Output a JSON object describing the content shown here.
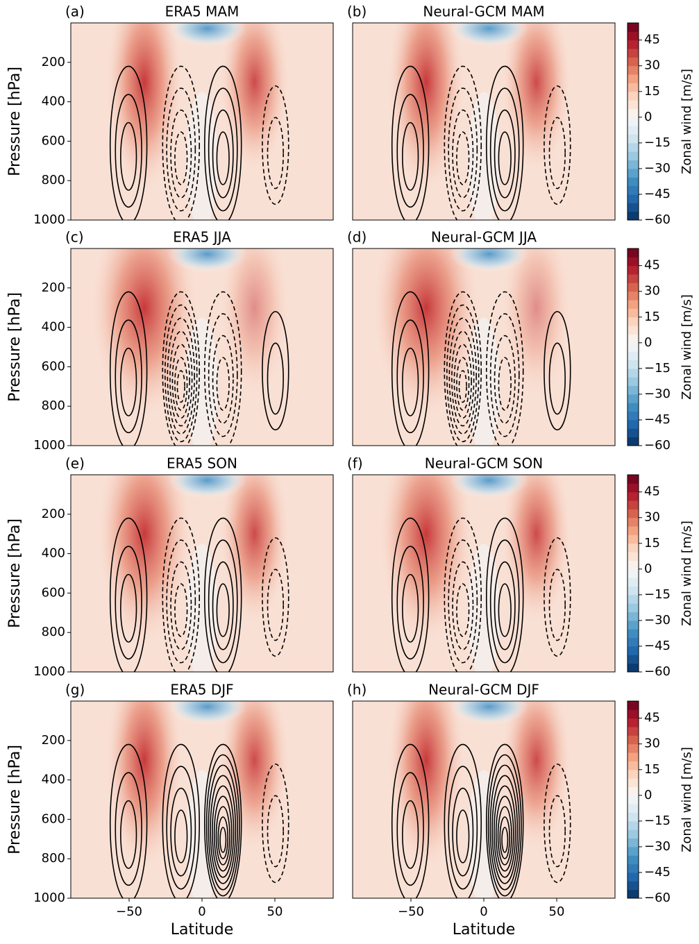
{
  "chart_data": [
    {
      "type": "contour",
      "panel": "(a)",
      "title": "ERA5 MAM",
      "xlim": [
        -90,
        90
      ],
      "ylim": [
        1000,
        0
      ],
      "ylabel": "Pressure [hPa]",
      "yticks": [
        200,
        400,
        600,
        800,
        1000
      ]
    },
    {
      "type": "contour",
      "panel": "(b)",
      "title": "Neural-GCM MAM",
      "xlim": [
        -90,
        90
      ],
      "ylim": [
        1000,
        0
      ],
      "colorbar": {
        "label": "Zonal wind [m/s]",
        "cmap": "RdBu_r",
        "lim": [
          -60,
          55
        ],
        "ticks": [
          45,
          30,
          15,
          0,
          {
            "value": -15,
            "label": "−15"
          },
          {
            "value": -30,
            "label": "−30"
          },
          {
            "value": -45,
            "label": "−45"
          },
          {
            "value": -60,
            "label": "−60"
          }
        ]
      }
    },
    {
      "type": "contour",
      "panel": "(c)",
      "title": "ERA5 JJA",
      "xlim": [
        -90,
        90
      ],
      "ylim": [
        1000,
        0
      ],
      "ylabel": "Pressure [hPa]",
      "yticks": [
        200,
        400,
        600,
        800,
        1000
      ]
    },
    {
      "type": "contour",
      "panel": "(d)",
      "title": "Neural-GCM JJA",
      "xlim": [
        -90,
        90
      ],
      "ylim": [
        1000,
        0
      ],
      "colorbar": {
        "label": "Zonal wind [m/s]",
        "cmap": "RdBu_r",
        "lim": [
          -60,
          55
        ],
        "ticks": [
          45,
          30,
          15,
          0,
          {
            "value": -15,
            "label": "−15"
          },
          {
            "value": -30,
            "label": "−30"
          },
          {
            "value": -45,
            "label": "−45"
          },
          {
            "value": -60,
            "label": "−60"
          }
        ]
      }
    },
    {
      "type": "contour",
      "panel": "(e)",
      "title": "ERA5 SON",
      "xlim": [
        -90,
        90
      ],
      "ylim": [
        1000,
        0
      ],
      "ylabel": "Pressure [hPa]",
      "yticks": [
        200,
        400,
        600,
        800,
        1000
      ]
    },
    {
      "type": "contour",
      "panel": "(f)",
      "title": "Neural-GCM SON",
      "xlim": [
        -90,
        90
      ],
      "ylim": [
        1000,
        0
      ],
      "colorbar": {
        "label": "Zonal wind [m/s]",
        "cmap": "RdBu_r",
        "lim": [
          -60,
          55
        ],
        "ticks": [
          45,
          30,
          15,
          0,
          {
            "value": -15,
            "label": "−15"
          },
          {
            "value": -30,
            "label": "−30"
          },
          {
            "value": -45,
            "label": "−45"
          },
          {
            "value": -60,
            "label": "−60"
          }
        ]
      }
    },
    {
      "type": "contour",
      "panel": "(g)",
      "title": "ERA5 DJF",
      "xlim": [
        -90,
        90
      ],
      "ylim": [
        1000,
        0
      ],
      "ylabel": "Pressure [hPa]",
      "yticks": [
        200,
        400,
        600,
        800,
        1000
      ],
      "xlabel": "Latitude",
      "xticks": [
        {
          "value": -50,
          "label": "−50"
        },
        0,
        50
      ]
    },
    {
      "type": "contour",
      "panel": "(h)",
      "title": "Neural-GCM DJF",
      "xlim": [
        -90,
        90
      ],
      "ylim": [
        1000,
        0
      ],
      "xlabel": "Latitude",
      "xticks": [
        {
          "value": -50,
          "label": "−50"
        },
        0,
        50
      ],
      "colorbar": {
        "label": "Zonal wind [m/s]",
        "cmap": "RdBu_r",
        "lim": [
          -60,
          55
        ],
        "ticks": [
          45,
          30,
          15,
          0,
          {
            "value": -15,
            "label": "−15"
          },
          {
            "value": -30,
            "label": "−30"
          },
          {
            "value": -45,
            "label": "−45"
          },
          {
            "value": -60,
            "label": "−60"
          }
        ]
      }
    }
  ]
}
